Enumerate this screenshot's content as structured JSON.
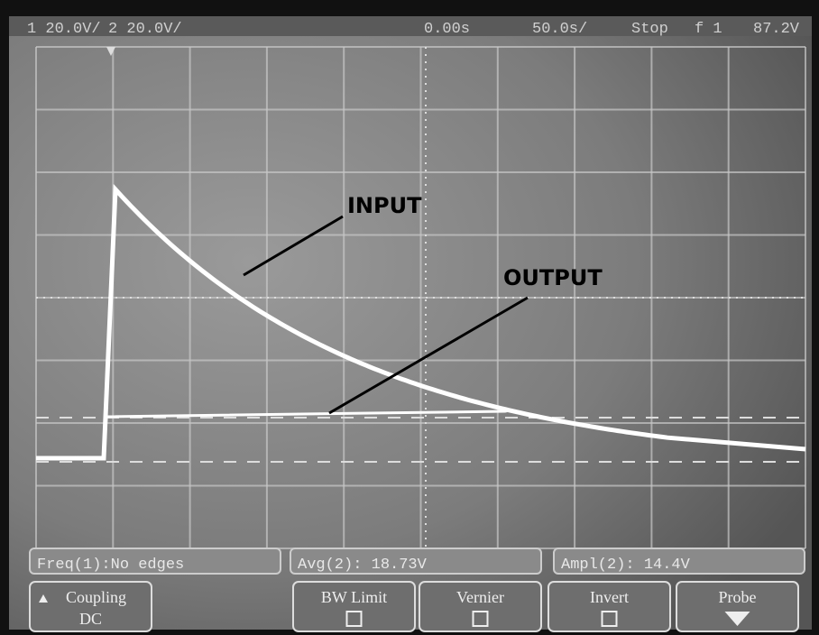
{
  "status_bar": {
    "ch1": "1 20.0V/",
    "ch2": "2 20.0V/",
    "delay": "0.00s",
    "timebase": "50.0s/",
    "run_state": "Stop",
    "trigger": "f 1",
    "trigger_level": "87.2V"
  },
  "annotations": {
    "input": "INPUT",
    "output": "OUTPUT"
  },
  "measurements": [
    "Freq(1):No edges",
    "Avg(2): 18.73V",
    "Ampl(2): 14.4V"
  ],
  "softkeys": [
    {
      "label": "Coupling",
      "value": "DC"
    },
    {
      "label": "BW Limit"
    },
    {
      "label": "Vernier"
    },
    {
      "label": "Invert"
    },
    {
      "label": "Probe"
    }
  ]
}
